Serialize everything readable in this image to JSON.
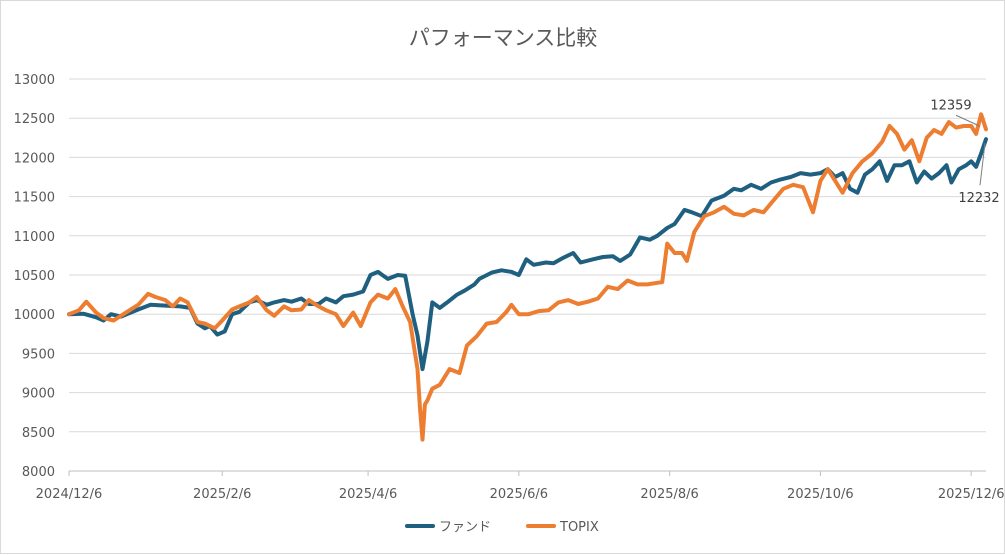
{
  "chart_data": {
    "type": "line",
    "title": "パフォーマンス比較",
    "xlabel": "",
    "ylabel": "",
    "ylim": [
      8000,
      13000
    ],
    "yticks": [
      8000,
      8500,
      9000,
      9500,
      10000,
      10500,
      11000,
      11500,
      12000,
      12500,
      13000
    ],
    "xlim": [
      "2024-12-06",
      "2025-12-12"
    ],
    "x_tick_labels": [
      "2024/12/6",
      "2025/2/6",
      "2025/4/6",
      "2025/6/6",
      "2025/8/6",
      "2025/10/6",
      "2025/12/6"
    ],
    "x_tick_dates": [
      "2024-12-06",
      "2025-02-06",
      "2025-04-06",
      "2025-06-06",
      "2025-08-06",
      "2025-10-06",
      "2025-12-06"
    ],
    "grid": true,
    "legend_position": "bottom",
    "series": [
      {
        "name": "ファンド",
        "color": "#1f5f80",
        "points": [
          [
            "2024-12-06",
            10000
          ],
          [
            "2024-12-12",
            10005
          ],
          [
            "2024-12-17",
            9960
          ],
          [
            "2024-12-20",
            9920
          ],
          [
            "2024-12-23",
            10000
          ],
          [
            "2024-12-27",
            9970
          ],
          [
            "2025-01-03",
            10060
          ],
          [
            "2025-01-08",
            10120
          ],
          [
            "2025-01-14",
            10110
          ],
          [
            "2025-01-20",
            10100
          ],
          [
            "2025-01-24",
            10080
          ],
          [
            "2025-01-27",
            9880
          ],
          [
            "2025-01-30",
            9820
          ],
          [
            "2025-02-01",
            9850
          ],
          [
            "2025-02-04",
            9740
          ],
          [
            "2025-02-07",
            9780
          ],
          [
            "2025-02-10",
            10000
          ],
          [
            "2025-02-13",
            10030
          ],
          [
            "2025-02-17",
            10150
          ],
          [
            "2025-02-20",
            10180
          ],
          [
            "2025-02-24",
            10120
          ],
          [
            "2025-02-27",
            10150
          ],
          [
            "2025-03-03",
            10180
          ],
          [
            "2025-03-06",
            10160
          ],
          [
            "2025-03-10",
            10200
          ],
          [
            "2025-03-13",
            10130
          ],
          [
            "2025-03-17",
            10130
          ],
          [
            "2025-03-20",
            10200
          ],
          [
            "2025-03-24",
            10150
          ],
          [
            "2025-03-27",
            10230
          ],
          [
            "2025-03-31",
            10250
          ],
          [
            "2025-04-04",
            10290
          ],
          [
            "2025-04-07",
            10500
          ],
          [
            "2025-04-10",
            10540
          ],
          [
            "2025-04-14",
            10450
          ],
          [
            "2025-04-18",
            10500
          ],
          [
            "2025-04-21",
            10490
          ],
          [
            "2025-04-24",
            10000
          ],
          [
            "2025-04-26",
            9730
          ],
          [
            "2025-04-28",
            9300
          ],
          [
            "2025-04-30",
            9650
          ],
          [
            "2025-05-02",
            10150
          ],
          [
            "2025-05-05",
            10080
          ],
          [
            "2025-05-08",
            10150
          ],
          [
            "2025-05-12",
            10250
          ],
          [
            "2025-05-15",
            10300
          ],
          [
            "2025-05-19",
            10380
          ],
          [
            "2025-05-21",
            10450
          ],
          [
            "2025-05-26",
            10530
          ],
          [
            "2025-05-30",
            10560
          ],
          [
            "2025-06-03",
            10540
          ],
          [
            "2025-06-06",
            10500
          ],
          [
            "2025-06-09",
            10700
          ],
          [
            "2025-06-12",
            10630
          ],
          [
            "2025-06-17",
            10660
          ],
          [
            "2025-06-20",
            10650
          ],
          [
            "2025-06-24",
            10720
          ],
          [
            "2025-06-28",
            10780
          ],
          [
            "2025-07-01",
            10660
          ],
          [
            "2025-07-06",
            10700
          ],
          [
            "2025-07-10",
            10730
          ],
          [
            "2025-07-14",
            10740
          ],
          [
            "2025-07-17",
            10680
          ],
          [
            "2025-07-21",
            10760
          ],
          [
            "2025-07-25",
            10980
          ],
          [
            "2025-07-29",
            10950
          ],
          [
            "2025-08-01",
            11000
          ],
          [
            "2025-08-05",
            11100
          ],
          [
            "2025-08-08",
            11150
          ],
          [
            "2025-08-12",
            11330
          ],
          [
            "2025-08-15",
            11300
          ],
          [
            "2025-08-19",
            11250
          ],
          [
            "2025-08-23",
            11450
          ],
          [
            "2025-08-28",
            11510
          ],
          [
            "2025-09-01",
            11600
          ],
          [
            "2025-09-04",
            11580
          ],
          [
            "2025-09-08",
            11650
          ],
          [
            "2025-09-12",
            11600
          ],
          [
            "2025-09-16",
            11680
          ],
          [
            "2025-09-20",
            11720
          ],
          [
            "2025-09-24",
            11750
          ],
          [
            "2025-09-28",
            11800
          ],
          [
            "2025-10-02",
            11780
          ],
          [
            "2025-10-06",
            11800
          ],
          [
            "2025-10-09",
            11850
          ],
          [
            "2025-10-12",
            11750
          ],
          [
            "2025-10-15",
            11800
          ],
          [
            "2025-10-18",
            11600
          ],
          [
            "2025-10-21",
            11550
          ],
          [
            "2025-10-24",
            11780
          ],
          [
            "2025-10-27",
            11850
          ],
          [
            "2025-10-30",
            11950
          ],
          [
            "2025-11-02",
            11700
          ],
          [
            "2025-11-05",
            11900
          ],
          [
            "2025-11-08",
            11900
          ],
          [
            "2025-11-11",
            11950
          ],
          [
            "2025-11-14",
            11680
          ],
          [
            "2025-11-17",
            11820
          ],
          [
            "2025-11-20",
            11730
          ],
          [
            "2025-11-23",
            11800
          ],
          [
            "2025-11-26",
            11900
          ],
          [
            "2025-11-28",
            11680
          ],
          [
            "2025-12-01",
            11850
          ],
          [
            "2025-12-04",
            11900
          ],
          [
            "2025-12-06",
            11950
          ],
          [
            "2025-12-08",
            11880
          ],
          [
            "2025-12-10",
            12050
          ],
          [
            "2025-12-12",
            12232
          ]
        ]
      },
      {
        "name": "TOPIX",
        "color": "#ed7d31",
        "points": [
          [
            "2024-12-06",
            10000
          ],
          [
            "2024-12-10",
            10050
          ],
          [
            "2024-12-13",
            10160
          ],
          [
            "2024-12-17",
            10020
          ],
          [
            "2024-12-20",
            9950
          ],
          [
            "2024-12-24",
            9920
          ],
          [
            "2024-12-27",
            9980
          ],
          [
            "2025-01-03",
            10120
          ],
          [
            "2025-01-07",
            10260
          ],
          [
            "2025-01-10",
            10220
          ],
          [
            "2025-01-14",
            10180
          ],
          [
            "2025-01-17",
            10100
          ],
          [
            "2025-01-20",
            10200
          ],
          [
            "2025-01-23",
            10150
          ],
          [
            "2025-01-27",
            9900
          ],
          [
            "2025-01-30",
            9880
          ],
          [
            "2025-02-03",
            9820
          ],
          [
            "2025-02-06",
            9920
          ],
          [
            "2025-02-10",
            10060
          ],
          [
            "2025-02-13",
            10100
          ],
          [
            "2025-02-17",
            10150
          ],
          [
            "2025-02-20",
            10220
          ],
          [
            "2025-02-24",
            10050
          ],
          [
            "2025-02-27",
            9980
          ],
          [
            "2025-03-03",
            10100
          ],
          [
            "2025-03-06",
            10050
          ],
          [
            "2025-03-10",
            10060
          ],
          [
            "2025-03-13",
            10180
          ],
          [
            "2025-03-17",
            10100
          ],
          [
            "2025-03-20",
            10050
          ],
          [
            "2025-03-24",
            10000
          ],
          [
            "2025-03-27",
            9850
          ],
          [
            "2025-03-31",
            10020
          ],
          [
            "2025-04-03",
            9850
          ],
          [
            "2025-04-07",
            10150
          ],
          [
            "2025-04-10",
            10250
          ],
          [
            "2025-04-14",
            10200
          ],
          [
            "2025-04-17",
            10320
          ],
          [
            "2025-04-20",
            10100
          ],
          [
            "2025-04-23",
            9900
          ],
          [
            "2025-04-26",
            9300
          ],
          [
            "2025-04-27",
            8800
          ],
          [
            "2025-04-28",
            8400
          ],
          [
            "2025-04-29",
            8850
          ],
          [
            "2025-04-30",
            8900
          ],
          [
            "2025-05-02",
            9050
          ],
          [
            "2025-05-05",
            9100
          ],
          [
            "2025-05-09",
            9300
          ],
          [
            "2025-05-13",
            9250
          ],
          [
            "2025-05-16",
            9600
          ],
          [
            "2025-05-20",
            9720
          ],
          [
            "2025-05-24",
            9880
          ],
          [
            "2025-05-28",
            9900
          ],
          [
            "2025-06-01",
            10030
          ],
          [
            "2025-06-03",
            10120
          ],
          [
            "2025-06-06",
            10000
          ],
          [
            "2025-06-10",
            10000
          ],
          [
            "2025-06-14",
            10040
          ],
          [
            "2025-06-18",
            10050
          ],
          [
            "2025-06-22",
            10150
          ],
          [
            "2025-06-26",
            10180
          ],
          [
            "2025-06-30",
            10130
          ],
          [
            "2025-07-04",
            10160
          ],
          [
            "2025-07-08",
            10200
          ],
          [
            "2025-07-12",
            10350
          ],
          [
            "2025-07-16",
            10320
          ],
          [
            "2025-07-20",
            10430
          ],
          [
            "2025-07-24",
            10380
          ],
          [
            "2025-07-28",
            10380
          ],
          [
            "2025-08-01",
            10400
          ],
          [
            "2025-08-03",
            10410
          ],
          [
            "2025-08-05",
            10900
          ],
          [
            "2025-08-08",
            10780
          ],
          [
            "2025-08-11",
            10780
          ],
          [
            "2025-08-13",
            10680
          ],
          [
            "2025-08-16",
            11050
          ],
          [
            "2025-08-20",
            11250
          ],
          [
            "2025-08-24",
            11300
          ],
          [
            "2025-08-28",
            11370
          ],
          [
            "2025-09-01",
            11280
          ],
          [
            "2025-09-05",
            11260
          ],
          [
            "2025-09-09",
            11330
          ],
          [
            "2025-09-13",
            11300
          ],
          [
            "2025-09-17",
            11450
          ],
          [
            "2025-09-21",
            11600
          ],
          [
            "2025-09-25",
            11650
          ],
          [
            "2025-09-29",
            11620
          ],
          [
            "2025-10-03",
            11300
          ],
          [
            "2025-10-06",
            11700
          ],
          [
            "2025-10-09",
            11850
          ],
          [
            "2025-10-12",
            11700
          ],
          [
            "2025-10-15",
            11550
          ],
          [
            "2025-10-19",
            11800
          ],
          [
            "2025-10-23",
            11950
          ],
          [
            "2025-10-27",
            12050
          ],
          [
            "2025-10-31",
            12200
          ],
          [
            "2025-11-03",
            12400
          ],
          [
            "2025-11-06",
            12300
          ],
          [
            "2025-11-09",
            12100
          ],
          [
            "2025-11-12",
            12220
          ],
          [
            "2025-11-15",
            11950
          ],
          [
            "2025-11-18",
            12250
          ],
          [
            "2025-11-21",
            12350
          ],
          [
            "2025-11-24",
            12300
          ],
          [
            "2025-11-27",
            12450
          ],
          [
            "2025-11-30",
            12380
          ],
          [
            "2025-12-03",
            12400
          ],
          [
            "2025-12-06",
            12400
          ],
          [
            "2025-12-08",
            12300
          ],
          [
            "2025-12-10",
            12550
          ],
          [
            "2025-12-12",
            12359
          ]
        ]
      }
    ],
    "annotations": [
      {
        "text": "12359",
        "series": "TOPIX",
        "date": "2025-12-12",
        "value": 12359
      },
      {
        "text": "12232",
        "series": "ファンド",
        "date": "2025-12-12",
        "value": 12232
      }
    ]
  }
}
